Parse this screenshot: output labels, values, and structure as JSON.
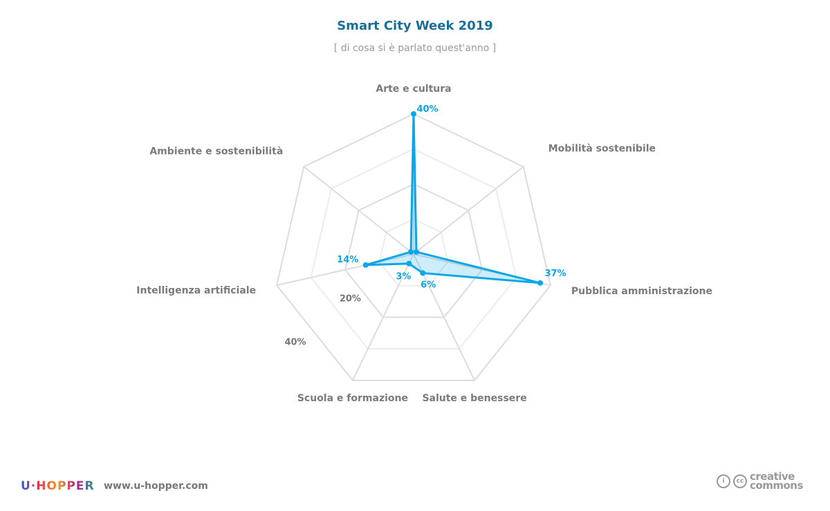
{
  "header": {
    "title": "Smart City Week 2019",
    "subtitle": "[ di cosa si è parlato quest'anno ]"
  },
  "chart_data": {
    "type": "radar",
    "title": "Smart City Week 2019",
    "subtitle": "[ di cosa si è parlato quest'anno ]",
    "categories": [
      "Arte e cultura",
      "Mobilità sostenibile",
      "Pubblica amministrazione",
      "Salute e benessere",
      "Scuola e formazione",
      "Intelligenza artificiale",
      "Ambiente e sostenibilità"
    ],
    "values": [
      40,
      1,
      37,
      6,
      3,
      14,
      1
    ],
    "value_labels": [
      "40%",
      null,
      "37%",
      "6%",
      "3%",
      "14%",
      null
    ],
    "range": [
      0,
      40
    ],
    "rings": [
      10,
      20,
      30,
      40
    ],
    "ring_labels": [
      "20%",
      "40%"
    ],
    "color": "#0aa6e8"
  },
  "footer": {
    "logo": "U·HOPPER",
    "website": "www.u-hopper.com",
    "license_line1": "creative",
    "license_line2": "commons",
    "license_icon_text": "cc"
  }
}
